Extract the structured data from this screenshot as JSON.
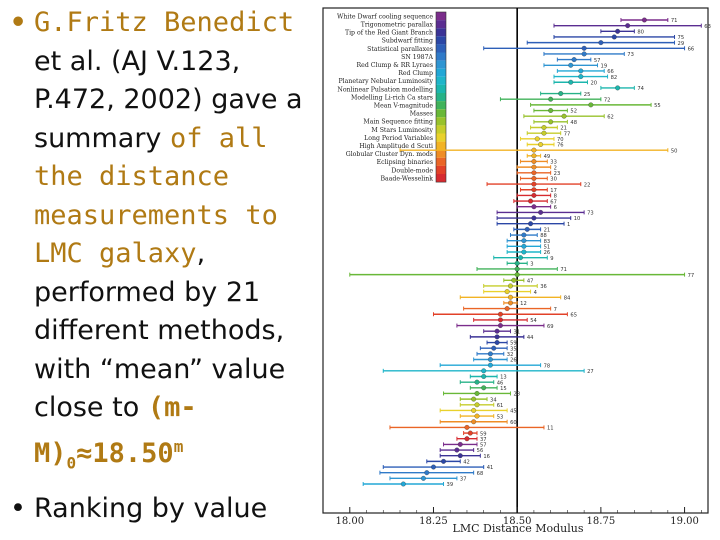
{
  "slide": {
    "bullet_glyph": "•",
    "bullet1": {
      "part1": "G.Fritz Benedict",
      "part2": " et al. (AJ V.123, P.472, 2002) gave a summary ",
      "part3": "of all the distance measurements to LMC galaxy",
      "part4": ", performed by 21 different methods, with “mean” value close to ",
      "formula_main": "(m-M)",
      "formula_sub": "0",
      "formula_approx": "≈18.50",
      "formula_sup": "m"
    },
    "bullet2": "Ranking by value"
  },
  "chart_data": {
    "type": "scatter",
    "xlabel": "LMC Distance Modulus",
    "xlim": [
      17.92,
      19.07
    ],
    "xticks": [
      18.0,
      18.25,
      18.5,
      18.75,
      19.0
    ],
    "xtick_labels": [
      "18.00",
      "18.25",
      "18.50",
      "18.75",
      "19.00"
    ],
    "reference_line": 18.5,
    "grid": false,
    "legend": [
      {
        "label": "White Dwarf cooling sequence",
        "color": "#7b2d8b"
      },
      {
        "label": "Trigonometric parallax",
        "color": "#5a2d91"
      },
      {
        "label": "Tip of the Red Giant Branch",
        "color": "#3b3396"
      },
      {
        "label": "Subdwarf fitting",
        "color": "#2b47a6"
      },
      {
        "label": "Statistical parallaxes",
        "color": "#2d5fb8"
      },
      {
        "label": "SN 1987A",
        "color": "#2f7ac8"
      },
      {
        "label": "Red Clump & RR Lyraes",
        "color": "#2f95d2"
      },
      {
        "label": "Red Clump",
        "color": "#22a7d6"
      },
      {
        "label": "Planetary Nebular Luminosity",
        "color": "#1fb5c9"
      },
      {
        "label": "Nonlinear Pulsation modelling",
        "color": "#1cb6ad"
      },
      {
        "label": "Modelling Li-rich Ca stars",
        "color": "#26b287"
      },
      {
        "label": "Mean V-magnitude",
        "color": "#40b25a"
      },
      {
        "label": "Masses",
        "color": "#69b838"
      },
      {
        "label": "Main Sequence fitting",
        "color": "#98c22c"
      },
      {
        "label": "M Stars Luminosity",
        "color": "#c6cd2b"
      },
      {
        "label": "Long Period Variables",
        "color": "#e9d12c"
      },
      {
        "label": "High Amplitude d Scuti",
        "color": "#f2b324"
      },
      {
        "label": "Globular Cluster Dyn. mods",
        "color": "#ef8d25"
      },
      {
        "label": "Eclipsing binaries",
        "color": "#ea6526"
      },
      {
        "label": "Double-mode",
        "color": "#e24128"
      },
      {
        "label": "Baade-Wesselink",
        "color": "#d62a2f"
      }
    ],
    "points": [
      {
        "value": 18.88,
        "err": 0.07,
        "label": "71",
        "method": 0
      },
      {
        "value": 18.83,
        "err": 0.22,
        "label": "63",
        "method": 1
      },
      {
        "value": 18.8,
        "err": 0.05,
        "label": "80",
        "method": 2
      },
      {
        "value": 18.79,
        "err": 0.18,
        "label": "75",
        "method": 3
      },
      {
        "value": 18.75,
        "err": 0.22,
        "label": "29",
        "method": 4
      },
      {
        "value": 18.7,
        "err": 0.3,
        "label": "66",
        "method": 4
      },
      {
        "value": 18.7,
        "err": 0.12,
        "label": "73",
        "method": 5
      },
      {
        "value": 18.67,
        "err": 0.05,
        "label": "57",
        "method": 5
      },
      {
        "value": 18.66,
        "err": 0.08,
        "label": "19",
        "method": 6
      },
      {
        "value": 18.69,
        "err": 0.07,
        "label": "66",
        "method": 7
      },
      {
        "value": 18.69,
        "err": 0.08,
        "label": "82",
        "method": 8
      },
      {
        "value": 18.66,
        "err": 0.05,
        "label": "20",
        "method": 9
      },
      {
        "value": 18.8,
        "err": 0.05,
        "label": "74",
        "method": 9
      },
      {
        "value": 18.63,
        "err": 0.06,
        "label": "25",
        "method": 10
      },
      {
        "value": 18.6,
        "err": 0.15,
        "label": "72",
        "method": 11
      },
      {
        "value": 18.72,
        "err": 0.18,
        "label": "55",
        "method": 12
      },
      {
        "value": 18.6,
        "err": 0.05,
        "label": "52",
        "method": 12
      },
      {
        "value": 18.64,
        "err": 0.12,
        "label": "62",
        "method": 13
      },
      {
        "value": 18.6,
        "err": 0.05,
        "label": "48",
        "method": 13
      },
      {
        "value": 18.58,
        "err": 0.04,
        "label": "21",
        "method": 14
      },
      {
        "value": 18.58,
        "err": 0.05,
        "label": "77",
        "method": 14
      },
      {
        "value": 18.56,
        "err": 0.05,
        "label": "70",
        "method": 15
      },
      {
        "value": 18.57,
        "err": 0.04,
        "label": "76",
        "method": 15
      },
      {
        "value": 18.55,
        "err": 0.4,
        "label": "50",
        "method": 16
      },
      {
        "value": 18.55,
        "err": 0.02,
        "label": "49",
        "method": 16
      },
      {
        "value": 18.55,
        "err": 0.04,
        "label": "33",
        "method": 17
      },
      {
        "value": 18.55,
        "err": 0.05,
        "label": "2",
        "method": 17
      },
      {
        "value": 18.55,
        "err": 0.05,
        "label": "23",
        "method": 18
      },
      {
        "value": 18.55,
        "err": 0.04,
        "label": "30",
        "method": 18
      },
      {
        "value": 18.55,
        "err": 0.14,
        "label": "22",
        "method": 19
      },
      {
        "value": 18.55,
        "err": 0.04,
        "label": "17",
        "method": 19
      },
      {
        "value": 18.55,
        "err": 0.05,
        "label": "8",
        "method": 20
      },
      {
        "value": 18.54,
        "err": 0.05,
        "label": "67",
        "method": 20
      },
      {
        "value": 18.55,
        "err": 0.05,
        "label": "6",
        "method": 0
      },
      {
        "value": 18.57,
        "err": 0.13,
        "label": "73",
        "method": 1
      },
      {
        "value": 18.55,
        "err": 0.11,
        "label": "10",
        "method": 2
      },
      {
        "value": 18.54,
        "err": 0.1,
        "label": "1",
        "method": 3
      },
      {
        "value": 18.53,
        "err": 0.04,
        "label": "21",
        "method": 4
      },
      {
        "value": 18.52,
        "err": 0.04,
        "label": "88",
        "method": 5
      },
      {
        "value": 18.52,
        "err": 0.05,
        "label": "83",
        "method": 6
      },
      {
        "value": 18.52,
        "err": 0.05,
        "label": "51",
        "method": 7
      },
      {
        "value": 18.52,
        "err": 0.05,
        "label": "26",
        "method": 8
      },
      {
        "value": 18.51,
        "err": 0.08,
        "label": "9",
        "method": 9
      },
      {
        "value": 18.5,
        "err": 0.03,
        "label": "3",
        "method": 10
      },
      {
        "value": 18.5,
        "err": 0.12,
        "label": "71",
        "method": 11
      },
      {
        "value": 18.5,
        "err": 0.5,
        "label": "77",
        "method": 12
      },
      {
        "value": 18.49,
        "err": 0.03,
        "label": "47",
        "method": 13
      },
      {
        "value": 18.48,
        "err": 0.08,
        "label": "36",
        "method": 14
      },
      {
        "value": 18.47,
        "err": 0.07,
        "label": "4",
        "method": 15
      },
      {
        "value": 18.48,
        "err": 0.15,
        "label": "84",
        "method": 16
      },
      {
        "value": 18.48,
        "err": 0.02,
        "label": "12",
        "method": 17
      },
      {
        "value": 18.47,
        "err": 0.13,
        "label": "7",
        "method": 18
      },
      {
        "value": 18.45,
        "err": 0.2,
        "label": "65",
        "method": 19
      },
      {
        "value": 18.45,
        "err": 0.08,
        "label": "54",
        "method": 20
      },
      {
        "value": 18.45,
        "err": 0.13,
        "label": "69",
        "method": 0
      },
      {
        "value": 18.44,
        "err": 0.04,
        "label": "31",
        "method": 1
      },
      {
        "value": 18.44,
        "err": 0.08,
        "label": "44",
        "method": 2
      },
      {
        "value": 18.44,
        "err": 0.03,
        "label": "59",
        "method": 3
      },
      {
        "value": 18.43,
        "err": 0.04,
        "label": "35",
        "method": 4
      },
      {
        "value": 18.42,
        "err": 0.04,
        "label": "32",
        "method": 5
      },
      {
        "value": 18.42,
        "err": 0.05,
        "label": "26",
        "method": 6
      },
      {
        "value": 18.42,
        "err": 0.15,
        "label": "78",
        "method": 7
      },
      {
        "value": 18.4,
        "err": 0.3,
        "label": "27",
        "method": 8
      },
      {
        "value": 18.4,
        "err": 0.04,
        "label": "13",
        "method": 9
      },
      {
        "value": 18.38,
        "err": 0.05,
        "label": "46",
        "method": 10
      },
      {
        "value": 18.4,
        "err": 0.04,
        "label": "15",
        "method": 11
      },
      {
        "value": 18.38,
        "err": 0.1,
        "label": "28",
        "method": 12
      },
      {
        "value": 18.37,
        "err": 0.04,
        "label": "34",
        "method": 13
      },
      {
        "value": 18.38,
        "err": 0.05,
        "label": "61",
        "method": 14
      },
      {
        "value": 18.37,
        "err": 0.1,
        "label": "45",
        "method": 15
      },
      {
        "value": 18.38,
        "err": 0.05,
        "label": "53",
        "method": 16
      },
      {
        "value": 18.37,
        "err": 0.1,
        "label": "60",
        "method": 17
      },
      {
        "value": 18.35,
        "err": 0.23,
        "label": "11",
        "method": 18
      },
      {
        "value": 18.36,
        "err": 0.02,
        "label": "59",
        "method": 19
      },
      {
        "value": 18.35,
        "err": 0.03,
        "label": "37",
        "method": 20
      },
      {
        "value": 18.33,
        "err": 0.05,
        "label": "57",
        "method": 0
      },
      {
        "value": 18.32,
        "err": 0.05,
        "label": "56",
        "method": 1
      },
      {
        "value": 18.33,
        "err": 0.06,
        "label": "16",
        "method": 2
      },
      {
        "value": 18.28,
        "err": 0.05,
        "label": "42",
        "method": 3
      },
      {
        "value": 18.25,
        "err": 0.15,
        "label": "41",
        "method": 4
      },
      {
        "value": 18.23,
        "err": 0.14,
        "label": "68",
        "method": 5
      },
      {
        "value": 18.22,
        "err": 0.1,
        "label": "37",
        "method": 6
      },
      {
        "value": 18.16,
        "err": 0.12,
        "label": "39",
        "method": 7
      }
    ]
  }
}
